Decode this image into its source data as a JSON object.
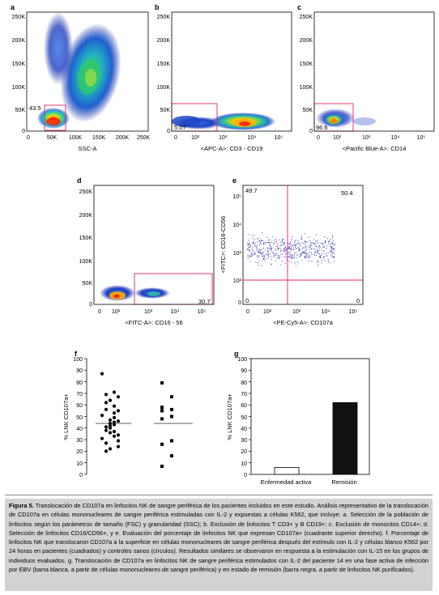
{
  "panels": {
    "a": {
      "letter": "a",
      "xlabel": "SSC-A",
      "gate_pct": "43.5",
      "xticks": [
        "0",
        "50K",
        "100K",
        "150K",
        "200K",
        "250K"
      ],
      "yticks": [
        "0",
        "50K",
        "100K",
        "150K",
        "200K",
        "250K"
      ]
    },
    "b": {
      "letter": "b",
      "xlabel": "<APC-A>: CD3 - CD19",
      "gate_pct": "5.07",
      "xticks": [
        "0",
        "10²",
        "10³",
        "10⁴",
        "10⁵"
      ],
      "yticks": [
        "0",
        "50K",
        "100K",
        "150K",
        "200K",
        "250K"
      ]
    },
    "c": {
      "letter": "c",
      "xlabel": "<Pacific Blue-A>: CD14",
      "gate_pct": "96.6",
      "xticks": [
        "0",
        "10²",
        "10³",
        "10⁴",
        "10⁵"
      ],
      "yticks": [
        "0",
        "50K",
        "100K",
        "150K",
        "200K",
        "250K"
      ]
    },
    "d": {
      "letter": "d",
      "xlabel": "<FITC-A>: CD16 - 56",
      "gate_pct": "30.7",
      "xticks": [
        "0",
        "10²",
        "10³",
        "10⁴",
        "10⁵"
      ],
      "yticks": [
        "0",
        "50K",
        "100K",
        "150K",
        "200K",
        "250K"
      ]
    },
    "e": {
      "letter": "e",
      "xlabel": "<PE-Cy5-A>: CD107a",
      "ylabel": "<FITC>: CD16-CD56",
      "q_ul": "49.7",
      "q_ur": "50.4",
      "q_ll": "0",
      "q_lr": "0",
      "xticks": [
        "0",
        "10²",
        "10³",
        "10⁴",
        "10⁵"
      ],
      "yticks": [
        "0",
        "10²",
        "10³",
        "10⁴",
        "10⁵"
      ]
    },
    "f": {
      "letter": "f",
      "ylabel": "% LNK CD107a+",
      "yticks": [
        "0",
        "10",
        "20",
        "30",
        "40",
        "50",
        "60",
        "70",
        "80",
        "90",
        "100"
      ]
    },
    "g": {
      "letter": "g",
      "ylabel": "% LNK CD107a+",
      "yticks": [
        "0",
        "10",
        "20",
        "30",
        "40",
        "50",
        "60",
        "70",
        "80",
        "90",
        "100"
      ]
    }
  },
  "chart_data": [
    {
      "type": "scatter",
      "panel": "f",
      "ylabel": "% LNK CD107a+",
      "ylim": [
        0,
        100
      ],
      "series": [
        {
          "marker": "circle",
          "values": [
            87,
            71,
            69,
            67,
            64,
            62,
            59,
            56,
            55,
            53,
            51,
            49,
            47,
            46,
            45,
            44,
            43,
            42,
            41,
            40,
            38,
            37,
            36,
            34,
            33,
            31,
            29,
            27,
            24,
            22,
            20
          ],
          "mean": 44
        },
        {
          "marker": "square",
          "values": [
            79,
            67,
            58,
            56,
            55,
            50,
            48,
            29,
            26,
            16,
            7
          ],
          "mean": 44
        }
      ]
    },
    {
      "type": "bar",
      "panel": "g",
      "categories": [
        "Enfermedad activa",
        "Remisión"
      ],
      "values": [
        6,
        62
      ],
      "colors": [
        "#ffffff",
        "#111111"
      ],
      "ylabel": "% LNK CD107a+",
      "ylim": [
        0,
        100
      ]
    }
  ],
  "caption": {
    "title": "Figura 5.",
    "text": "Translocación de CD107a en linfocitos NK de sangre periférica de los pacientes incluidos en este estudio. Análisis representativo de la translocación de CD107a en células mononucleares de sangre periférica estimuladas con IL-2 y expuestas a células K562, que incluye: a. Selección de la población de linfocitos según los parámetros de tamaño (FSC) y granularidad (SSC); b. Exclusión de linfocitos T CD3+ y B CD19+; c. Exclusión de monocitos CD14+; d. Selección de linfocitos CD16/CD56+, y e. Evaluación del porcentaje de linfocitos NK que expresan CD107a+ (cuadrante superior derecho). f. Porcentaje de linfocitos NK que translocaron CD107a a la superficie en células mononucleares de sangre periférica después del estímulo con IL-2 y células blanco K562 por 24 horas en pacientes (cuadrados) y controles sanos (círculos). Resultados similares se observaron en respuesta a la estimulación con IL-15 en los grupos de individuos evaluados. g. Translocación de CD107a en linfocitos NK de sangre periférica estimulados con IL-2 del paciente 14 en una fase activa de infección por EBV (barra blanca, a partir de células mononucleares de sangre periférica) y en estado de remisión (barra negra, a partir de linfocitos NK purificados)."
  }
}
